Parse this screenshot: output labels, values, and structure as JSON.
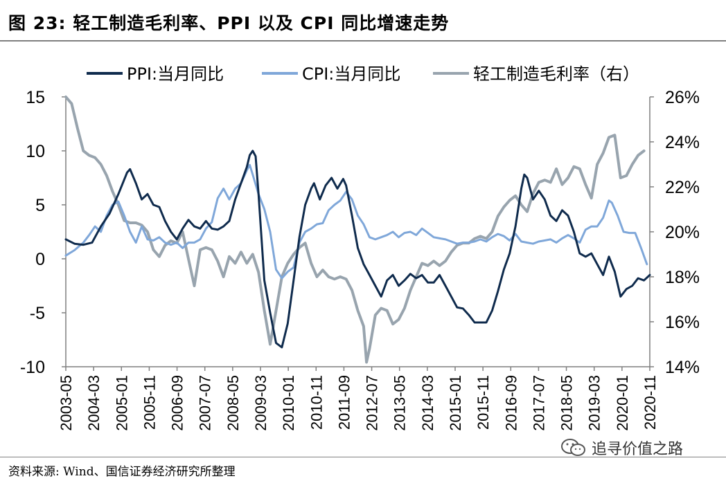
{
  "title": "图 23:  轻工制造毛利率、PPI 以及 CPI 同比增速走势",
  "source": "资料来源: Wind、国信证券经济研究所整理",
  "watermark": "追寻价值之路",
  "colors": {
    "ppi": "#0f2b4d",
    "cpi": "#7fa7d9",
    "margin": "#98a4ae",
    "axis": "#7f7f7f"
  },
  "chart_data": {
    "type": "line",
    "title": "轻工制造毛利率、PPI 以及 CPI 同比增速走势",
    "legend_position": "top",
    "grid": false,
    "left_axis": {
      "min": -10,
      "max": 15,
      "ticks": [
        "15",
        "10",
        "5",
        "0",
        "-5",
        "-10"
      ]
    },
    "right_axis": {
      "min": 14,
      "max": 26,
      "ticks": [
        "26%",
        "24%",
        "22%",
        "20%",
        "18%",
        "16%",
        "14%"
      ]
    },
    "x_tick_labels": [
      "2003-05",
      "2004-03",
      "2005-01",
      "2005-11",
      "2006-09",
      "2007-07",
      "2008-05",
      "2009-03",
      "2010-01",
      "2010-11",
      "2011-09",
      "2012-07",
      "2013-05",
      "2014-03",
      "2015-01",
      "2015-11",
      "2016-09",
      "2017-07",
      "2018-05",
      "2019-03",
      "2020-01",
      "2020-11"
    ],
    "series": [
      {
        "name": "PPI:当月同比",
        "axis": "left",
        "points": [
          [
            0,
            1.8
          ],
          [
            3,
            1.4
          ],
          [
            6,
            1.3
          ],
          [
            9,
            1.5
          ],
          [
            12,
            3
          ],
          [
            15,
            4.2
          ],
          [
            18,
            6
          ],
          [
            21,
            8
          ],
          [
            22,
            8.3
          ],
          [
            24,
            7
          ],
          [
            26,
            5.5
          ],
          [
            28,
            6
          ],
          [
            30,
            5
          ],
          [
            32,
            4.8
          ],
          [
            34,
            3.5
          ],
          [
            36,
            2.5
          ],
          [
            38,
            1.8
          ],
          [
            40,
            2.8
          ],
          [
            42,
            3.6
          ],
          [
            44,
            3
          ],
          [
            46,
            2.8
          ],
          [
            48,
            3.5
          ],
          [
            50,
            2.8
          ],
          [
            52,
            2.7
          ],
          [
            54,
            3
          ],
          [
            56,
            3.5
          ],
          [
            58,
            5.5
          ],
          [
            60,
            7
          ],
          [
            62,
            8.5
          ],
          [
            63,
            9.6
          ],
          [
            64,
            10
          ],
          [
            65,
            9.5
          ],
          [
            66,
            6
          ],
          [
            67,
            2
          ],
          [
            68,
            -2
          ],
          [
            70,
            -5
          ],
          [
            72,
            -7.8
          ],
          [
            74,
            -8.2
          ],
          [
            76,
            -6
          ],
          [
            78,
            -2
          ],
          [
            80,
            2
          ],
          [
            82,
            5
          ],
          [
            84,
            6.5
          ],
          [
            85,
            7
          ],
          [
            87,
            5.5
          ],
          [
            89,
            6.8
          ],
          [
            91,
            7.5
          ],
          [
            93,
            6.5
          ],
          [
            95,
            7.4
          ],
          [
            96,
            6.8
          ],
          [
            98,
            4
          ],
          [
            100,
            1
          ],
          [
            102,
            -0.5
          ],
          [
            104,
            -1.5
          ],
          [
            106,
            -2.5
          ],
          [
            108,
            -3.5
          ],
          [
            110,
            -2
          ],
          [
            112,
            -1.5
          ],
          [
            114,
            -2.5
          ],
          [
            116,
            -2
          ],
          [
            118,
            -1.4
          ],
          [
            120,
            -1.8
          ],
          [
            122,
            -1.5
          ],
          [
            124,
            -2.2
          ],
          [
            126,
            -2.2
          ],
          [
            128,
            -1.5
          ],
          [
            130,
            -2.5
          ],
          [
            132,
            -3.5
          ],
          [
            134,
            -4.5
          ],
          [
            136,
            -4.6
          ],
          [
            138,
            -5.2
          ],
          [
            140,
            -5.9
          ],
          [
            142,
            -5.9
          ],
          [
            144,
            -5.9
          ],
          [
            146,
            -4.8
          ],
          [
            148,
            -3
          ],
          [
            150,
            -1
          ],
          [
            152,
            0.5
          ],
          [
            154,
            3
          ],
          [
            156,
            6.5
          ],
          [
            157,
            7.8
          ],
          [
            158,
            7.5
          ],
          [
            160,
            5.5
          ],
          [
            162,
            6.3
          ],
          [
            164,
            5.5
          ],
          [
            166,
            4
          ],
          [
            168,
            3.5
          ],
          [
            170,
            4.5
          ],
          [
            172,
            4
          ],
          [
            174,
            2.5
          ],
          [
            176,
            0.5
          ],
          [
            178,
            0.2
          ],
          [
            180,
            0.5
          ],
          [
            182,
            -0.5
          ],
          [
            184,
            -1.5
          ],
          [
            186,
            0.2
          ],
          [
            188,
            -1.2
          ],
          [
            190,
            -3.5
          ],
          [
            192,
            -2.8
          ],
          [
            194,
            -2.5
          ],
          [
            196,
            -1.8
          ],
          [
            198,
            -2
          ],
          [
            200,
            -1.5
          ]
        ]
      },
      {
        "name": "CPI:当月同比",
        "axis": "left",
        "points": [
          [
            0,
            0.3
          ],
          [
            3,
            0.8
          ],
          [
            6,
            1.5
          ],
          [
            8,
            2.2
          ],
          [
            10,
            3
          ],
          [
            12,
            2.5
          ],
          [
            14,
            4
          ],
          [
            16,
            5
          ],
          [
            18,
            5.3
          ],
          [
            20,
            4
          ],
          [
            22,
            2.5
          ],
          [
            24,
            1.5
          ],
          [
            26,
            3
          ],
          [
            28,
            1.8
          ],
          [
            30,
            1.7
          ],
          [
            32,
            2
          ],
          [
            34,
            1.5
          ],
          [
            36,
            1.3
          ],
          [
            38,
            1.5
          ],
          [
            40,
            1
          ],
          [
            42,
            1.5
          ],
          [
            44,
            1.5
          ],
          [
            46,
            1.8
          ],
          [
            48,
            2.8
          ],
          [
            50,
            3.4
          ],
          [
            52,
            5.6
          ],
          [
            54,
            6.5
          ],
          [
            56,
            5.5
          ],
          [
            58,
            6.5
          ],
          [
            60,
            7
          ],
          [
            62,
            8.2
          ],
          [
            63,
            8.7
          ],
          [
            64,
            7.8
          ],
          [
            66,
            6
          ],
          [
            68,
            4.6
          ],
          [
            70,
            2.5
          ],
          [
            72,
            -1
          ],
          [
            74,
            -1.8
          ],
          [
            76,
            -1.2
          ],
          [
            78,
            -0.8
          ],
          [
            80,
            1.5
          ],
          [
            82,
            2.5
          ],
          [
            84,
            2.8
          ],
          [
            86,
            3.2
          ],
          [
            88,
            3.3
          ],
          [
            90,
            4.5
          ],
          [
            92,
            5
          ],
          [
            94,
            5.4
          ],
          [
            96,
            6.2
          ],
          [
            98,
            5.5
          ],
          [
            100,
            4
          ],
          [
            102,
            3.2
          ],
          [
            104,
            2
          ],
          [
            106,
            1.8
          ],
          [
            108,
            2
          ],
          [
            110,
            2.2
          ],
          [
            112,
            2.5
          ],
          [
            114,
            2
          ],
          [
            116,
            2.4
          ],
          [
            118,
            2.5
          ],
          [
            120,
            2.2
          ],
          [
            122,
            2.8
          ],
          [
            124,
            2.4
          ],
          [
            126,
            2
          ],
          [
            128,
            1.9
          ],
          [
            130,
            1.8
          ],
          [
            132,
            1.6
          ],
          [
            134,
            1.4
          ],
          [
            136,
            1.5
          ],
          [
            138,
            1.5
          ],
          [
            140,
            1.6
          ],
          [
            142,
            1.8
          ],
          [
            144,
            1.6
          ],
          [
            146,
            2
          ],
          [
            148,
            2.3
          ],
          [
            150,
            2.1
          ],
          [
            152,
            1.7
          ],
          [
            154,
            2.3
          ],
          [
            156,
            1.6
          ],
          [
            158,
            1.5
          ],
          [
            160,
            1.4
          ],
          [
            162,
            1.6
          ],
          [
            164,
            1.7
          ],
          [
            166,
            1.8
          ],
          [
            168,
            1.5
          ],
          [
            170,
            1.9
          ],
          [
            172,
            2.2
          ],
          [
            174,
            1.9
          ],
          [
            176,
            1.5
          ],
          [
            178,
            2.7
          ],
          [
            180,
            3
          ],
          [
            182,
            3
          ],
          [
            184,
            3.8
          ],
          [
            186,
            5.4
          ],
          [
            187,
            5.2
          ],
          [
            189,
            4
          ],
          [
            191,
            2.5
          ],
          [
            193,
            2.4
          ],
          [
            195,
            2.4
          ],
          [
            197,
            1
          ],
          [
            199,
            -0.5
          ]
        ]
      },
      {
        "name": "轻工制造毛利率（右）",
        "axis": "right",
        "points": [
          [
            0,
            26
          ],
          [
            2,
            25.7
          ],
          [
            4,
            24.6
          ],
          [
            6,
            23.6
          ],
          [
            8,
            23.4
          ],
          [
            10,
            23.3
          ],
          [
            12,
            23.0
          ],
          [
            14,
            22.5
          ],
          [
            16,
            21.8
          ],
          [
            18,
            21.2
          ],
          [
            20,
            20.5
          ],
          [
            22,
            20.4
          ],
          [
            24,
            20.4
          ],
          [
            26,
            20.3
          ],
          [
            28,
            20.0
          ],
          [
            30,
            19.2
          ],
          [
            32,
            18.9
          ],
          [
            34,
            19.4
          ],
          [
            36,
            19.6
          ],
          [
            38,
            19.5
          ],
          [
            40,
            20.0
          ],
          [
            42,
            18.8
          ],
          [
            44,
            17.6
          ],
          [
            46,
            19.2
          ],
          [
            48,
            19.3
          ],
          [
            50,
            19.2
          ],
          [
            52,
            18.7
          ],
          [
            54,
            18.0
          ],
          [
            56,
            18.9
          ],
          [
            58,
            18.6
          ],
          [
            60,
            19.1
          ],
          [
            62,
            18.6
          ],
          [
            64,
            19.0
          ],
          [
            66,
            18.2
          ],
          [
            68,
            16.5
          ],
          [
            70,
            15.0
          ],
          [
            72,
            16.5
          ],
          [
            74,
            18.0
          ],
          [
            76,
            18.6
          ],
          [
            78,
            19.0
          ],
          [
            80,
            19.3
          ],
          [
            82,
            19.5
          ],
          [
            84,
            18.6
          ],
          [
            86,
            18.0
          ],
          [
            88,
            18.3
          ],
          [
            90,
            18.0
          ],
          [
            92,
            17.9
          ],
          [
            94,
            18.0
          ],
          [
            96,
            17.9
          ],
          [
            98,
            17.4
          ],
          [
            100,
            16.5
          ],
          [
            102,
            15.8
          ],
          [
            103,
            14.2
          ],
          [
            104,
            14.8
          ],
          [
            106,
            16.3
          ],
          [
            108,
            16.6
          ],
          [
            110,
            16.5
          ],
          [
            112,
            15.9
          ],
          [
            114,
            16.1
          ],
          [
            116,
            16.6
          ],
          [
            118,
            17.4
          ],
          [
            120,
            18.0
          ],
          [
            122,
            18.6
          ],
          [
            124,
            18.5
          ],
          [
            126,
            18.7
          ],
          [
            128,
            18.5
          ],
          [
            130,
            18.7
          ],
          [
            132,
            19.1
          ],
          [
            134,
            19.4
          ],
          [
            136,
            19.5
          ],
          [
            138,
            19.5
          ],
          [
            140,
            19.7
          ],
          [
            142,
            19.8
          ],
          [
            144,
            19.7
          ],
          [
            146,
            20.0
          ],
          [
            148,
            20.7
          ],
          [
            150,
            21.1
          ],
          [
            152,
            21.4
          ],
          [
            154,
            21.6
          ],
          [
            156,
            21.2
          ],
          [
            158,
            20.9
          ],
          [
            160,
            21.7
          ],
          [
            162,
            22.2
          ],
          [
            164,
            22.3
          ],
          [
            166,
            22.2
          ],
          [
            168,
            22.8
          ],
          [
            170,
            22.1
          ],
          [
            172,
            22.4
          ],
          [
            174,
            22.9
          ],
          [
            176,
            22.8
          ],
          [
            178,
            22.1
          ],
          [
            180,
            21.5
          ],
          [
            182,
            23.0
          ],
          [
            184,
            23.5
          ],
          [
            186,
            24.2
          ],
          [
            188,
            24.3
          ],
          [
            190,
            22.4
          ],
          [
            192,
            22.5
          ],
          [
            194,
            23.0
          ],
          [
            196,
            23.4
          ],
          [
            198,
            23.6
          ]
        ]
      }
    ]
  }
}
